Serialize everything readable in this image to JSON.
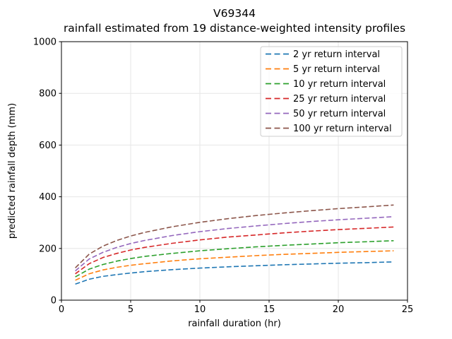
{
  "window": {
    "title": "V69344 rainfall chart"
  },
  "chart_data": {
    "type": "line",
    "title": "V69344",
    "subtitle": "rainfall estimated from 19 distance-weighted intensity profiles",
    "xlabel": "rainfall duration (hr)",
    "ylabel": "predicted rainfall depth (mm)",
    "xlim": [
      0,
      25
    ],
    "ylim": [
      0,
      1000
    ],
    "xticks": [
      0,
      5,
      10,
      15,
      20,
      25
    ],
    "yticks": [
      0,
      200,
      400,
      600,
      800,
      1000
    ],
    "grid": true,
    "grid_color": "#e6e6e6",
    "line_style": "dashed",
    "legend_position": "upper right",
    "x": [
      1,
      2,
      3,
      4,
      5,
      6,
      8,
      10,
      12,
      14,
      16,
      18,
      20,
      22,
      24
    ],
    "series": [
      {
        "name": "2 yr return interval",
        "color": "#1f77b4",
        "values": [
          62,
          81,
          92,
          99,
          105,
          110,
          118,
          124,
          129,
          133,
          137,
          140,
          143,
          145,
          148
        ]
      },
      {
        "name": "5 yr return interval",
        "color": "#ff7f0e",
        "values": [
          77,
          102,
          117,
          127,
          135,
          141,
          152,
          160,
          166,
          172,
          177,
          181,
          185,
          188,
          191
        ]
      },
      {
        "name": "10 yr return interval",
        "color": "#2ca02c",
        "values": [
          90,
          120,
          138,
          151,
          161,
          169,
          181,
          191,
          199,
          206,
          212,
          217,
          222,
          226,
          230
        ]
      },
      {
        "name": "25 yr return interval",
        "color": "#d62728",
        "values": [
          102,
          141,
          165,
          181,
          194,
          204,
          220,
          233,
          244,
          252,
          260,
          267,
          273,
          278,
          283
        ]
      },
      {
        "name": "50 yr return interval",
        "color": "#9467bd",
        "values": [
          113,
          159,
          185,
          204,
          219,
          231,
          250,
          265,
          277,
          287,
          296,
          304,
          311,
          317,
          323
        ]
      },
      {
        "name": "100 yr return interval",
        "color": "#8c564b",
        "values": [
          125,
          178,
          209,
          231,
          248,
          262,
          284,
          301,
          315,
          327,
          337,
          346,
          354,
          361,
          368
        ]
      }
    ]
  },
  "style": {
    "spine_color": "#000000",
    "tick_color": "#000000",
    "legend_border_color": "#cccccc",
    "legend_bg": "rgba(255,255,255,0.8)"
  }
}
